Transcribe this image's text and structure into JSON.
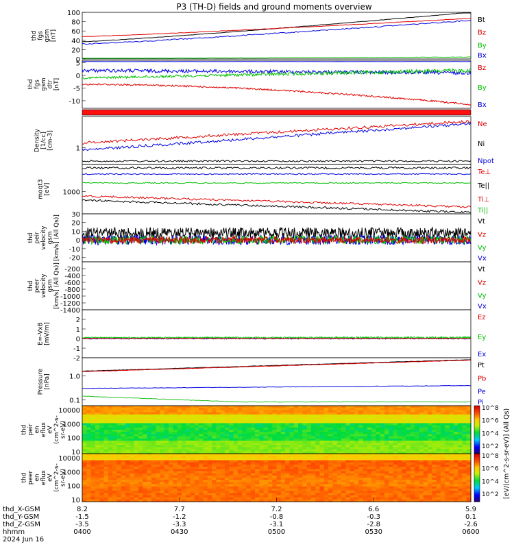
{
  "title": "P3 (TH-D) fields and ground moments overview",
  "chart_data": [
    {
      "type": "line",
      "ylabel_lines": [
        "thd",
        "fgs",
        "gsm",
        "[nT]"
      ],
      "ylim": [
        0,
        100
      ],
      "yticks": [
        "0",
        "20",
        "40",
        "60",
        "80",
        "100"
      ],
      "legend": [
        {
          "name": "Bt",
          "color": "#000000"
        },
        {
          "name": "Bz",
          "color": "#e00000"
        },
        {
          "name": "By",
          "color": "#00c000"
        },
        {
          "name": "Bx",
          "color": "#0000e0"
        }
      ],
      "series": [
        {
          "name": "Bt",
          "x_range": [
            0,
            1
          ],
          "start": 37,
          "end": 100
        },
        {
          "name": "Bz",
          "x_range": [
            0,
            1
          ],
          "start": 48,
          "end": 87
        },
        {
          "name": "By",
          "x_range": [
            0,
            1
          ],
          "start": 32,
          "end": 83
        },
        {
          "name": "Bx",
          "x_range": [
            0,
            1
          ],
          "start": 1,
          "end": 4
        }
      ]
    },
    {
      "type": "line",
      "ylabel_lines": [
        "thd",
        "fgs",
        "gsm",
        "dtr",
        "[nT]"
      ],
      "ylim": [
        -13,
        6
      ],
      "yticks": [
        "-10",
        "-5",
        "0",
        "5"
      ],
      "legend": [
        {
          "name": "Bz",
          "color": "#e00000"
        },
        {
          "name": "By",
          "color": "#00c000"
        },
        {
          "name": "Bx",
          "color": "#0000e0"
        }
      ]
    },
    {
      "type": "line",
      "ylabel_lines": [
        "Density",
        "[1/cc]",
        "[cm-3]"
      ],
      "yticks": [
        "1"
      ],
      "legend": [
        {
          "name": "Ne",
          "color": "#e00000"
        },
        {
          "name": "Ni",
          "color": "#000000"
        },
        {
          "name": "Npot",
          "color": "#0000e0"
        }
      ]
    },
    {
      "type": "line",
      "ylabel_lines": [
        "moqt3",
        "[eV]"
      ],
      "yticks": [
        "1000"
      ],
      "legend": [
        {
          "name": "Te⊥",
          "color": "#e00000"
        },
        {
          "name": "Te||",
          "color": "#000000"
        },
        {
          "name": "Ti⊥",
          "color": "#e00000"
        },
        {
          "name": "Ti||",
          "color": "#00c000"
        }
      ]
    },
    {
      "type": "line",
      "ylabel_lines": [
        "thd",
        "peir",
        "velocity",
        "gsm",
        "[km/s] (All Qs)]"
      ],
      "ylim": [
        -25,
        30
      ],
      "yticks": [
        "-20",
        "-10",
        "0",
        "10",
        "20",
        "30"
      ],
      "legend": [
        {
          "name": "Vt",
          "color": "#000000"
        },
        {
          "name": "Vz",
          "color": "#e00000"
        },
        {
          "name": "Vy",
          "color": "#00c000"
        },
        {
          "name": "Vx",
          "color": "#0000e0"
        }
      ]
    },
    {
      "type": "line",
      "ylabel_lines": [
        "thd",
        "peer",
        "velocity",
        "gsm",
        "[km/s] (All Qs)]"
      ],
      "ylim": [
        -1400,
        0
      ],
      "yticks": [
        "-200",
        "-400",
        "-600",
        "-800",
        "-1000",
        "-1200",
        "-1400"
      ],
      "legend": [
        {
          "name": "Vt",
          "color": "#000000"
        },
        {
          "name": "Vz",
          "color": "#e00000"
        },
        {
          "name": "Vy",
          "color": "#00c000"
        },
        {
          "name": "Vx",
          "color": "#0000e0"
        }
      ]
    },
    {
      "type": "line",
      "ylabel_lines": [
        "E=-VxB",
        "[mV/m]"
      ],
      "ylim": [
        -2,
        3
      ],
      "yticks": [
        "-2",
        "-1",
        "0",
        "1",
        "2"
      ],
      "legend": [
        {
          "name": "Ez",
          "color": "#e00000"
        },
        {
          "name": "Ey",
          "color": "#00c000"
        },
        {
          "name": "Ex",
          "color": "#0000e0"
        }
      ]
    },
    {
      "type": "line",
      "ylabel_lines": [
        "Pressure",
        "[nPa]"
      ],
      "yticks": [
        "0.1",
        "1.0"
      ],
      "legend": [
        {
          "name": "Pt",
          "color": "#000000"
        },
        {
          "name": "Pb",
          "color": "#e00000"
        },
        {
          "name": "Pe",
          "color": "#0000e0"
        },
        {
          "name": "Pi",
          "color": "#0000e0"
        }
      ]
    },
    {
      "type": "heatmap",
      "ylabel_lines": [
        "thd",
        "peir",
        "en",
        "eflux",
        "eV",
        "(cm^2-s-",
        "sr-eV)"
      ],
      "yticks": [
        "10",
        "100",
        "1000",
        "10000"
      ]
    },
    {
      "type": "heatmap",
      "ylabel_lines": [
        "thd",
        "peer",
        "en",
        "eflux",
        "eV",
        "(cm^2-s-",
        "sr-eV)"
      ],
      "yticks": [
        "10",
        "100",
        "1000",
        "10000"
      ]
    }
  ],
  "colorbar": {
    "label": "[eV/(cm^2-s-sr-eV)] (All Qs)",
    "ticks": [
      "10^2",
      "10^4",
      "10^6",
      "10^8"
    ]
  },
  "xaxis": {
    "rows": [
      {
        "label": "thd_X-GSM",
        "values": [
          "8.2",
          "7.7",
          "7.2",
          "6.6",
          "5.9"
        ]
      },
      {
        "label": "thd_Y-GSM",
        "values": [
          "-1.5",
          "-1.2",
          "-0.8",
          "-0.3",
          "0.1"
        ]
      },
      {
        "label": "thd_Z-GSM",
        "values": [
          "-3.5",
          "-3.3",
          "-3.1",
          "-2.8",
          "-2.6"
        ]
      },
      {
        "label": "hhmm",
        "values": [
          "0400",
          "0430",
          "0500",
          "0530",
          "0600"
        ]
      }
    ],
    "date": "2024 Jun 16"
  }
}
